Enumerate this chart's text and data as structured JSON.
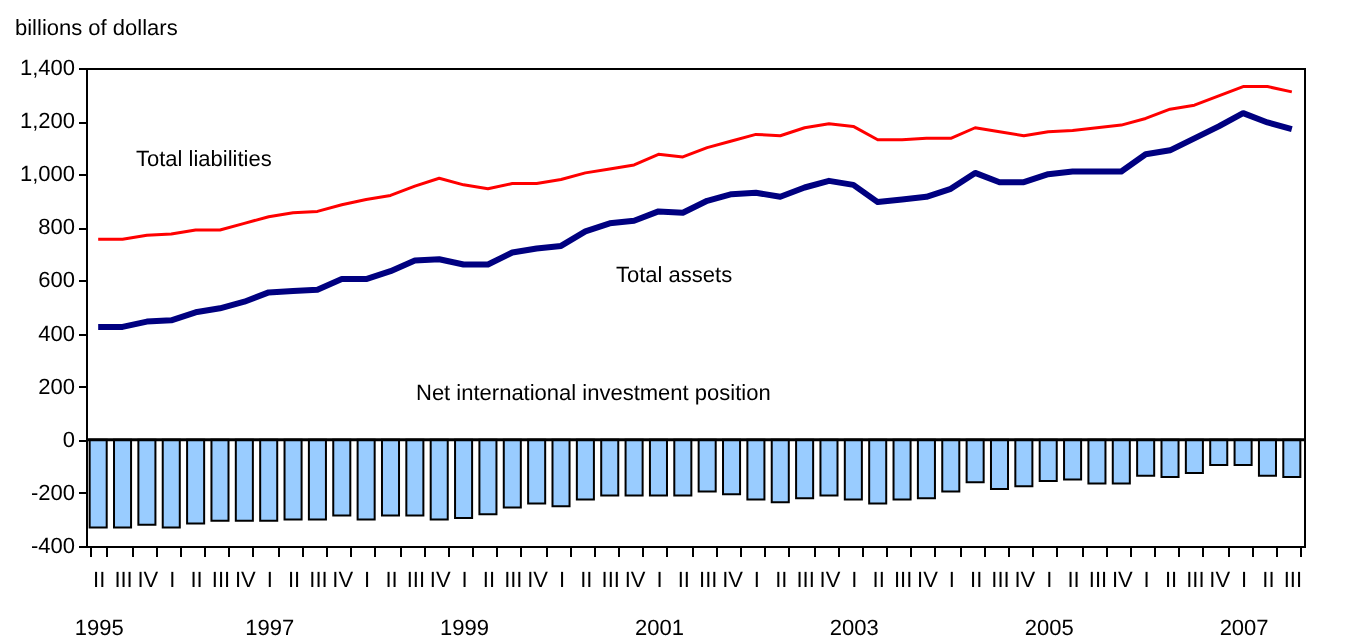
{
  "chart_data": {
    "type": "line",
    "ylabel": "billions of dollars",
    "categories": [
      "II\n1995",
      "III",
      "IV",
      "I",
      "II",
      "III",
      "IV",
      "I\n1997",
      "II",
      "III",
      "IV",
      "I",
      "II",
      "III",
      "IV",
      "I\n1999",
      "II",
      "III",
      "IV",
      "I",
      "II",
      "III",
      "IV",
      "I\n2001",
      "II",
      "III",
      "IV",
      "I",
      "II",
      "III",
      "IV",
      "I\n2003",
      "II",
      "III",
      "IV",
      "I",
      "II",
      "III",
      "IV",
      "I\n2005",
      "II",
      "III",
      "IV",
      "I",
      "II",
      "III",
      "IV",
      "I\n2007",
      "II",
      "III"
    ],
    "series": [
      {
        "name": "Net international investment position",
        "type": "bar",
        "color": "#99ccff",
        "values": [
          -330,
          -330,
          -320,
          -330,
          -315,
          -305,
          -305,
          -305,
          -300,
          -300,
          -285,
          -300,
          -285,
          -285,
          -300,
          -295,
          -280,
          -255,
          -240,
          -250,
          -225,
          -210,
          -210,
          -210,
          -210,
          -195,
          -205,
          -225,
          -235,
          -220,
          -210,
          -225,
          -240,
          -225,
          -220,
          -195,
          -160,
          -185,
          -175,
          -155,
          -150,
          -165,
          -165,
          -135,
          -140,
          -125,
          -95,
          -95,
          -135,
          -140
        ]
      },
      {
        "name": "Total liabilities",
        "color": "#ff0000",
        "values": [
          755,
          755,
          770,
          775,
          790,
          790,
          815,
          840,
          855,
          860,
          885,
          905,
          920,
          955,
          985,
          960,
          945,
          965,
          965,
          980,
          1005,
          1020,
          1035,
          1075,
          1065,
          1100,
          1125,
          1150,
          1145,
          1175,
          1190,
          1180,
          1130,
          1130,
          1135,
          1135,
          1175,
          1160,
          1145,
          1160,
          1165,
          1175,
          1185,
          1210,
          1245,
          1260,
          1295,
          1330,
          1330,
          1310
        ]
      },
      {
        "name": "Total assets",
        "color": "#000080",
        "values": [
          425,
          425,
          445,
          450,
          480,
          495,
          520,
          555,
          560,
          565,
          605,
          605,
          635,
          675,
          680,
          660,
          660,
          705,
          720,
          730,
          785,
          815,
          825,
          860,
          855,
          900,
          925,
          930,
          915,
          950,
          975,
          960,
          895,
          905,
          915,
          945,
          1005,
          970,
          970,
          1000,
          1010,
          1010,
          1010,
          1075,
          1090,
          1135,
          1180,
          1230,
          1195,
          1170
        ]
      }
    ],
    "ylim": [
      -400,
      1400
    ],
    "yticks": [
      -400,
      -200,
      0,
      200,
      400,
      600,
      800,
      {
        "value": 1000,
        "label": "1,000"
      },
      {
        "value": 1200,
        "label": "1,200"
      },
      {
        "value": 1400,
        "label": "1,400"
      }
    ],
    "ref_lines": [
      {
        "axis": "y",
        "value": 0,
        "color": "#000000"
      }
    ],
    "grid": false,
    "legend": false
  }
}
